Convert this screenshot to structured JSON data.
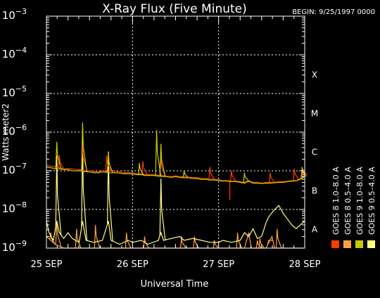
{
  "chart_data": {
    "type": "line",
    "title": "X-Ray Flux (Five Minute)",
    "begin_label": "BEGIN: 9/25/1997 0000",
    "xlabel": "Universal Time",
    "ylabel": "Watts meter2",
    "x_ticks": [
      {
        "day": 0,
        "label": "25 SEP"
      },
      {
        "day": 1,
        "label": "26 SEP"
      },
      {
        "day": 2,
        "label": "27 SEP"
      },
      {
        "day": 3,
        "label": "28 SEP"
      }
    ],
    "y_log_range": [
      -9,
      -3
    ],
    "y_ticks": [
      {
        "exp": -3,
        "base": "10",
        "sup": "−3"
      },
      {
        "exp": -4,
        "base": "10",
        "sup": "−4"
      },
      {
        "exp": -5,
        "base": "10",
        "sup": "−5"
      },
      {
        "exp": -6,
        "base": "10",
        "sup": "−6"
      },
      {
        "exp": -7,
        "base": "10",
        "sup": "−7"
      },
      {
        "exp": -8,
        "base": "10",
        "sup": "−8"
      },
      {
        "exp": -9,
        "base": "10",
        "sup": "−9"
      }
    ],
    "flare_classes": [
      {
        "label": "X",
        "exp": -4
      },
      {
        "label": "M",
        "exp": -5
      },
      {
        "label": "C",
        "exp": -6
      },
      {
        "label": "B",
        "exp": -7
      },
      {
        "label": "A",
        "exp": -8
      }
    ],
    "grid": true,
    "legend_position": "right",
    "series": [
      {
        "name": "GOES 8 1.0–8.0 A",
        "color": "#ff3a00",
        "points": [
          [
            0,
            -6.85
          ],
          [
            0.05,
            -6.88
          ],
          [
            0.1,
            -6.9
          ],
          [
            0.15,
            -6.92
          ],
          [
            0.2,
            -6.95
          ],
          [
            0.25,
            -6.94
          ],
          [
            0.3,
            -6.95
          ],
          [
            0.35,
            -6.97
          ],
          [
            0.4,
            -6.98
          ],
          [
            0.45,
            -7.0
          ],
          [
            0.5,
            -7.0
          ],
          [
            0.55,
            -7.02
          ],
          [
            0.6,
            -7.03
          ],
          [
            0.65,
            -7.0
          ],
          [
            0.7,
            -7.02
          ],
          [
            0.75,
            -7.0
          ],
          [
            0.8,
            -7.02
          ],
          [
            0.85,
            -7.03
          ],
          [
            0.9,
            -7.05
          ],
          [
            0.95,
            -7.05
          ],
          [
            1.0,
            -7.05
          ],
          [
            1.05,
            -7.08
          ],
          [
            1.1,
            -7.08
          ],
          [
            1.15,
            -7.1
          ],
          [
            1.2,
            -7.1
          ],
          [
            1.25,
            -7.1
          ],
          [
            1.3,
            -7.12
          ],
          [
            1.35,
            -7.12
          ],
          [
            1.4,
            -7.14
          ],
          [
            1.45,
            -7.15
          ],
          [
            1.5,
            -7.13
          ],
          [
            1.55,
            -7.15
          ],
          [
            1.6,
            -7.15
          ],
          [
            1.65,
            -7.17
          ],
          [
            1.7,
            -7.17
          ],
          [
            1.75,
            -7.18
          ],
          [
            1.8,
            -7.2
          ],
          [
            1.85,
            -7.2
          ],
          [
            1.9,
            -7.22
          ],
          [
            1.95,
            -7.22
          ],
          [
            2.0,
            -7.23
          ],
          [
            2.05,
            -7.25
          ],
          [
            2.1,
            -7.25
          ],
          [
            2.15,
            -7.27
          ],
          [
            2.2,
            -7.27
          ],
          [
            2.25,
            -7.28
          ],
          [
            2.3,
            -7.3
          ],
          [
            2.35,
            -7.25
          ],
          [
            2.4,
            -7.3
          ],
          [
            2.45,
            -7.3
          ],
          [
            2.5,
            -7.32
          ],
          [
            2.55,
            -7.3
          ],
          [
            2.6,
            -7.3
          ],
          [
            2.65,
            -7.3
          ],
          [
            2.7,
            -7.28
          ],
          [
            2.75,
            -7.28
          ],
          [
            2.8,
            -7.27
          ],
          [
            2.85,
            -7.25
          ],
          [
            2.9,
            -7.25
          ],
          [
            2.95,
            -7.2
          ],
          [
            3.0,
            -7.1
          ]
        ],
        "spikes": [
          [
            0.15,
            -6.6
          ],
          [
            0.42,
            -6.3
          ],
          [
            0.7,
            -6.6
          ],
          [
            1.12,
            -6.75
          ],
          [
            1.33,
            -6.65
          ],
          [
            1.9,
            -6.9
          ],
          [
            2.15,
            -7.0
          ],
          [
            2.6,
            -7.05
          ],
          [
            2.88,
            -6.95
          ],
          [
            2.98,
            -6.95
          ]
        ],
        "dips": [
          [
            2.13,
            -7.75
          ]
        ]
      },
      {
        "name": "GOES 8 0.5–4.0 A",
        "color": "#ffa040",
        "points": [
          [
            0,
            -8.7
          ],
          [
            0.1,
            -8.9
          ],
          [
            0.2,
            -9.0
          ],
          [
            0.4,
            -9.0
          ],
          [
            0.55,
            -9.0
          ],
          [
            0.7,
            -9.0
          ],
          [
            1.0,
            -9.0
          ],
          [
            1.2,
            -9.0
          ],
          [
            1.4,
            -9.0
          ],
          [
            1.6,
            -9.0
          ],
          [
            1.9,
            -9.0
          ],
          [
            2.1,
            -9.0
          ],
          [
            2.3,
            -9.0
          ],
          [
            2.35,
            -8.6
          ],
          [
            2.38,
            -9.0
          ],
          [
            2.55,
            -9.0
          ],
          [
            2.62,
            -8.7
          ],
          [
            2.65,
            -9.0
          ],
          [
            3.0,
            -9.0
          ]
        ],
        "spikes": [
          [
            0.05,
            -8.6
          ],
          [
            0.12,
            -8.3
          ],
          [
            0.35,
            -8.5
          ],
          [
            0.57,
            -8.4
          ],
          [
            0.93,
            -8.6
          ],
          [
            1.14,
            -8.7
          ],
          [
            1.57,
            -8.7
          ],
          [
            1.72,
            -8.7
          ],
          [
            1.95,
            -8.8
          ],
          [
            2.22,
            -8.6
          ],
          [
            2.45,
            -8.8
          ],
          [
            2.48,
            -8.75
          ],
          [
            2.58,
            -8.8
          ],
          [
            2.68,
            -8.5
          ]
        ]
      },
      {
        "name": "GOES 9 0.5–4.0 A",
        "color": "#ffff80",
        "points": [
          [
            0,
            -8.3
          ],
          [
            0.03,
            -8.6
          ],
          [
            0.08,
            -8.8
          ],
          [
            0.12,
            -8.3
          ],
          [
            0.15,
            -8.6
          ],
          [
            0.2,
            -8.75
          ],
          [
            0.25,
            -8.6
          ],
          [
            0.3,
            -8.75
          ],
          [
            0.38,
            -8.85
          ],
          [
            0.42,
            -8.3
          ],
          [
            0.46,
            -8.8
          ],
          [
            0.55,
            -8.85
          ],
          [
            0.65,
            -8.8
          ],
          [
            0.72,
            -8.3
          ],
          [
            0.75,
            -8.8
          ],
          [
            0.85,
            -8.9
          ],
          [
            0.95,
            -8.8
          ],
          [
            1.0,
            -8.85
          ],
          [
            1.1,
            -8.8
          ],
          [
            1.18,
            -8.9
          ],
          [
            1.3,
            -8.8
          ],
          [
            1.33,
            -8.6
          ],
          [
            1.36,
            -8.8
          ],
          [
            1.45,
            -8.75
          ],
          [
            1.55,
            -8.7
          ],
          [
            1.6,
            -8.8
          ],
          [
            1.7,
            -8.75
          ],
          [
            1.8,
            -8.8
          ],
          [
            1.9,
            -8.85
          ],
          [
            2.0,
            -8.85
          ],
          [
            2.05,
            -8.8
          ],
          [
            2.15,
            -8.85
          ],
          [
            2.25,
            -8.8
          ],
          [
            2.3,
            -8.6
          ],
          [
            2.35,
            -8.7
          ],
          [
            2.4,
            -8.5
          ],
          [
            2.45,
            -8.75
          ],
          [
            2.5,
            -8.7
          ],
          [
            2.55,
            -8.35
          ],
          [
            2.58,
            -8.2
          ],
          [
            2.65,
            -8.0
          ],
          [
            2.7,
            -7.9
          ],
          [
            2.75,
            -8.1
          ],
          [
            2.8,
            -8.25
          ],
          [
            2.85,
            -8.4
          ],
          [
            2.9,
            -8.5
          ],
          [
            2.95,
            -8.4
          ],
          [
            3.0,
            -8.3
          ]
        ],
        "spikes": [
          [
            0.12,
            -6.6
          ],
          [
            0.42,
            -6.2
          ],
          [
            0.72,
            -6.5
          ],
          [
            1.33,
            -7.2
          ]
        ]
      },
      {
        "name": "GOES 9 1.0–8.0 A",
        "color": "#c8c800",
        "points": [
          [
            0,
            -6.9
          ],
          [
            0.05,
            -6.92
          ],
          [
            0.1,
            -6.95
          ],
          [
            0.15,
            -6.95
          ],
          [
            0.2,
            -6.97
          ],
          [
            0.25,
            -6.97
          ],
          [
            0.3,
            -7.0
          ],
          [
            0.35,
            -7.0
          ],
          [
            0.4,
            -7.0
          ],
          [
            0.45,
            -7.02
          ],
          [
            0.5,
            -7.03
          ],
          [
            0.55,
            -7.05
          ],
          [
            0.6,
            -7.05
          ],
          [
            0.65,
            -7.03
          ],
          [
            0.7,
            -7.04
          ],
          [
            0.75,
            -7.05
          ],
          [
            0.8,
            -7.05
          ],
          [
            0.85,
            -7.06
          ],
          [
            0.9,
            -7.08
          ],
          [
            0.95,
            -7.07
          ],
          [
            1.0,
            -7.08
          ],
          [
            1.05,
            -7.1
          ],
          [
            1.1,
            -7.1
          ],
          [
            1.15,
            -7.12
          ],
          [
            1.2,
            -7.12
          ],
          [
            1.25,
            -7.12
          ],
          [
            1.3,
            -7.14
          ],
          [
            1.35,
            -7.15
          ],
          [
            1.4,
            -7.15
          ],
          [
            1.45,
            -7.17
          ],
          [
            1.5,
            -7.15
          ],
          [
            1.55,
            -7.17
          ],
          [
            1.6,
            -7.18
          ],
          [
            1.65,
            -7.18
          ],
          [
            1.7,
            -7.2
          ],
          [
            1.75,
            -7.2
          ],
          [
            1.8,
            -7.22
          ],
          [
            1.85,
            -7.22
          ],
          [
            1.9,
            -7.24
          ],
          [
            1.95,
            -7.24
          ],
          [
            2.0,
            -7.25
          ],
          [
            2.05,
            -7.27
          ],
          [
            2.1,
            -7.27
          ],
          [
            2.15,
            -7.28
          ],
          [
            2.2,
            -7.28
          ],
          [
            2.25,
            -7.3
          ],
          [
            2.3,
            -7.32
          ],
          [
            2.35,
            -7.27
          ],
          [
            2.4,
            -7.32
          ],
          [
            2.45,
            -7.32
          ],
          [
            2.5,
            -7.33
          ],
          [
            2.55,
            -7.32
          ],
          [
            2.6,
            -7.32
          ],
          [
            2.65,
            -7.31
          ],
          [
            2.7,
            -7.3
          ],
          [
            2.75,
            -7.3
          ],
          [
            2.8,
            -7.28
          ],
          [
            2.85,
            -7.27
          ],
          [
            2.9,
            -7.26
          ],
          [
            2.95,
            -7.22
          ],
          [
            3.0,
            -7.15
          ]
        ],
        "spikes": [
          [
            0.12,
            -6.25
          ],
          [
            0.42,
            -5.75
          ],
          [
            0.72,
            -6.55
          ],
          [
            1.08,
            -6.8
          ],
          [
            1.28,
            -5.95
          ],
          [
            1.33,
            -6.3
          ],
          [
            1.6,
            -7.0
          ],
          [
            2.3,
            -7.05
          ],
          [
            2.97,
            -6.9
          ]
        ]
      }
    ]
  }
}
